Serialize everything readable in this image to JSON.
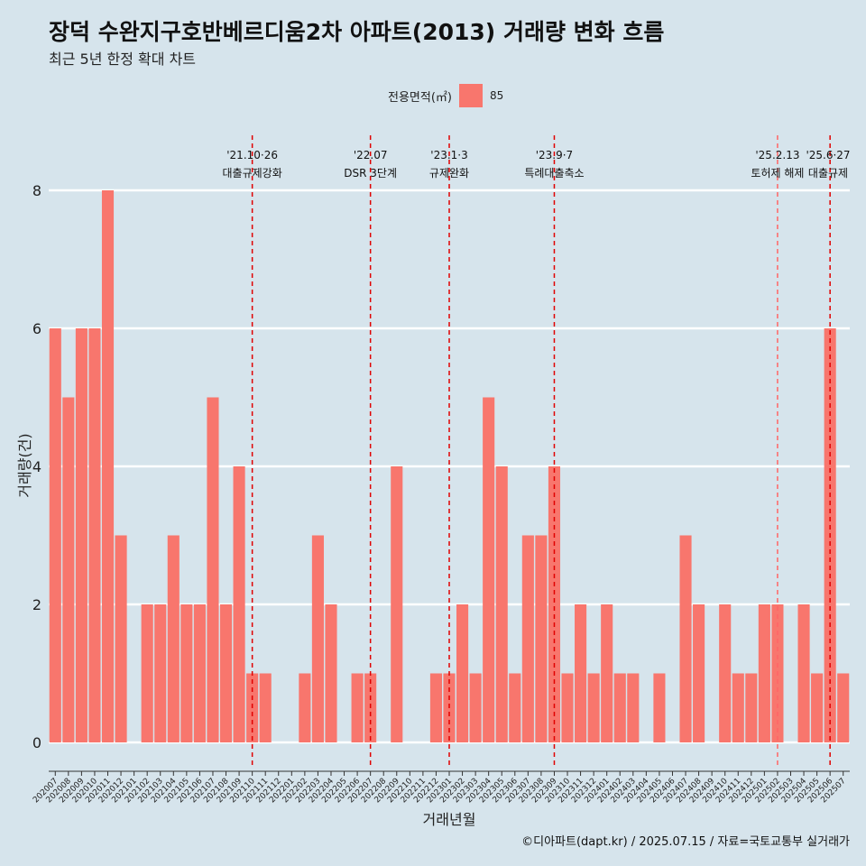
{
  "chart_data": {
    "type": "bar",
    "title": "장덕 수완지구호반베르디움2차 아파트(2013) 거래량 변화 흐름",
    "subtitle": "최근 5년 한정 확대 차트",
    "xlabel": "거래년월",
    "ylabel": "거래량(건)",
    "ylim": [
      0,
      8.55
    ],
    "yticks": [
      0,
      2,
      4,
      6,
      8
    ],
    "grid": "horizontal",
    "legend": {
      "title": "전용면적(㎡)",
      "position": "top",
      "entries": [
        "85"
      ]
    },
    "series": [
      {
        "name": "85",
        "color": "#f8766d",
        "categories": [
          "202007",
          "202008",
          "202009",
          "202010",
          "202011",
          "202012",
          "202101",
          "202102",
          "202103",
          "202104",
          "202105",
          "202106",
          "202107",
          "202108",
          "202109",
          "202110",
          "202111",
          "202112",
          "202201",
          "202202",
          "202203",
          "202204",
          "202205",
          "202206",
          "202207",
          "202208",
          "202209",
          "202210",
          "202211",
          "202212",
          "202301",
          "202302",
          "202303",
          "202304",
          "202305",
          "202306",
          "202307",
          "202308",
          "202309",
          "202310",
          "202311",
          "202312",
          "202401",
          "202402",
          "202403",
          "202404",
          "202405",
          "202406",
          "202407",
          "202408",
          "202409",
          "202410",
          "202411",
          "202412",
          "202501",
          "202502",
          "202503",
          "202504",
          "202505",
          "202506",
          "202507"
        ],
        "values": [
          6,
          5,
          6,
          6,
          8,
          3,
          0,
          2,
          2,
          3,
          2,
          2,
          5,
          2,
          4,
          1,
          1,
          0,
          0,
          1,
          3,
          2,
          0,
          1,
          1,
          0,
          4,
          0,
          0,
          1,
          1,
          2,
          1,
          5,
          4,
          1,
          3,
          3,
          4,
          1,
          2,
          1,
          2,
          1,
          1,
          0,
          1,
          0,
          3,
          2,
          0,
          2,
          1,
          1,
          2,
          2,
          0,
          2,
          1,
          6,
          1
        ]
      }
    ],
    "annotations": [
      {
        "x": "202110",
        "date": "'21.10·26",
        "label": "대출규제강화",
        "color": "#e00000"
      },
      {
        "x": "202207",
        "date": "'22.07",
        "label": "DSR 3단계",
        "color": "#e00000"
      },
      {
        "x": "202301",
        "date": "'23.1·3",
        "label": "규제완화",
        "color": "#e00000"
      },
      {
        "x": "202309",
        "date": "'23.9·7",
        "label": "특례대출축소",
        "color": "#e00000"
      },
      {
        "x": "202502",
        "date": "'25.2.13",
        "label": "토허제 해제",
        "color": "#ff6666"
      },
      {
        "x": "202506",
        "date": "'25.6·27",
        "label": "대출규제",
        "color": "#e00000"
      }
    ],
    "caption": "©디아파트(dapt.kr) / 2025.07.15 / 자료=국토교통부 실거래가"
  }
}
